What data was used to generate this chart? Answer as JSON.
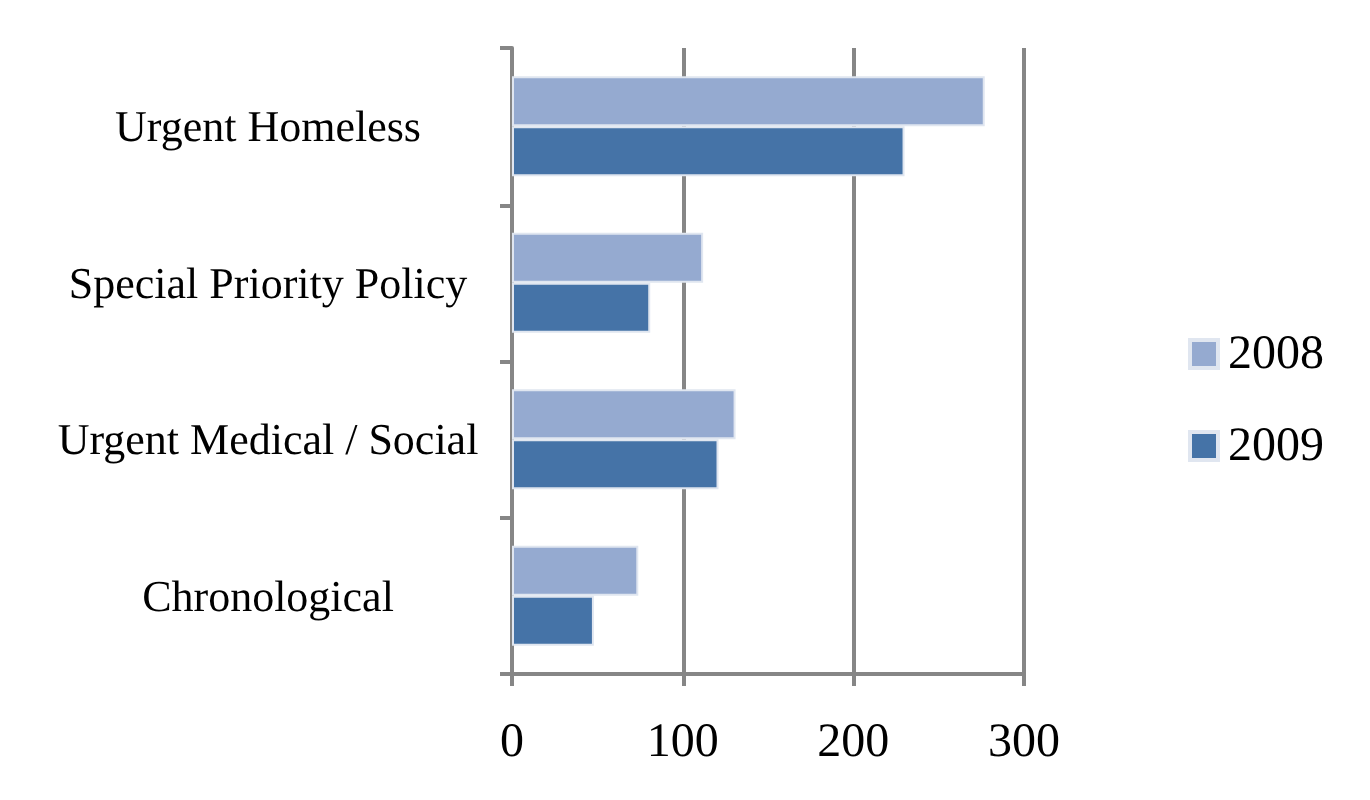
{
  "chart_data": {
    "type": "bar",
    "orientation": "horizontal",
    "categories": [
      "Urgent Homeless",
      "Special Priority Policy",
      "Urgent Medical / Social",
      "Chronological"
    ],
    "series": [
      {
        "name": "2008",
        "color": "#95aad0",
        "values": [
          277,
          112,
          131,
          74
        ]
      },
      {
        "name": "2009",
        "color": "#4573a7",
        "values": [
          230,
          81,
          121,
          48
        ]
      }
    ],
    "xlim": [
      0,
      300
    ],
    "xticks": [
      0,
      100,
      200,
      300
    ],
    "grid": "x",
    "legend": "right"
  }
}
